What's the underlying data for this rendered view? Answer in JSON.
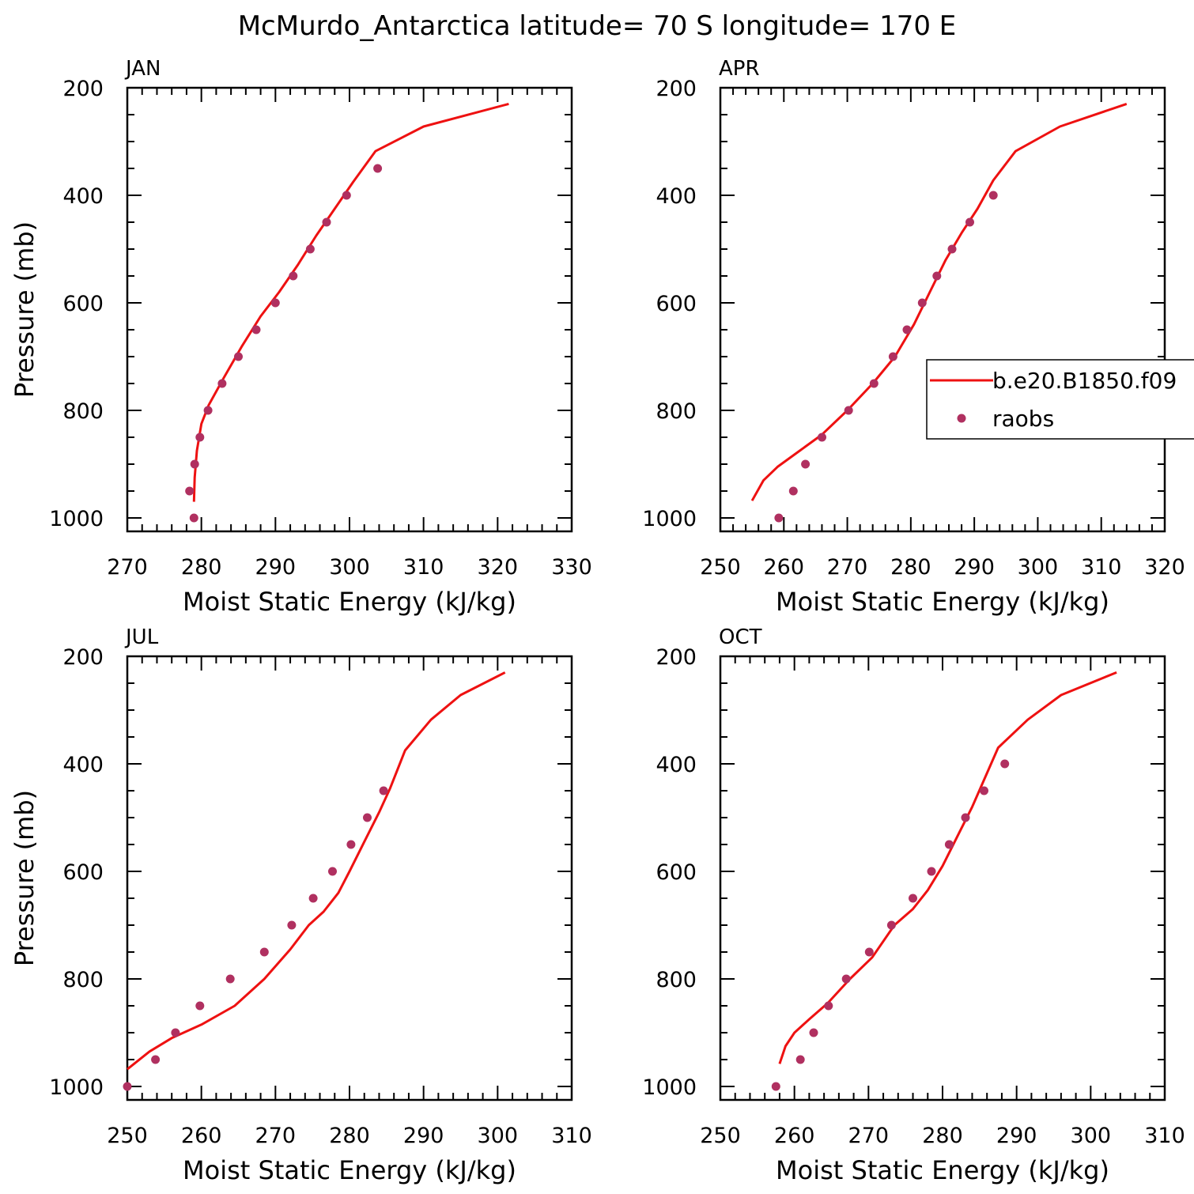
{
  "title": "McMurdo_Antarctica  latitude= 70 S longitude= 170 E",
  "colors": {
    "model": "#ee1111",
    "obs": "#b03060",
    "axis": "#000000"
  },
  "legend": {
    "model_label": "b.e20.B1850.f09",
    "obs_label": "raobs",
    "placement": "right-middle (APR panel)"
  },
  "chart_data": [
    {
      "type": "line",
      "panel_label": "JAN",
      "xlabel": "Moist Static Energy (kJ/kg)",
      "ylabel": "Pressure (mb)",
      "xlim": [
        270,
        330
      ],
      "ylim": [
        1025,
        200
      ],
      "xticks": [
        270,
        280,
        290,
        300,
        310,
        320,
        330
      ],
      "yticks": [
        200,
        400,
        600,
        800,
        1000
      ],
      "series": [
        {
          "name": "b.e20.B1850.f09",
          "kind": "line",
          "x": [
            279.0,
            279.1,
            279.4,
            280.0,
            281.0,
            283.0,
            285.5,
            288.0,
            290.5,
            293.0,
            295.5,
            298.0,
            300.5,
            303.5,
            310.0,
            321.5
          ],
          "y": [
            970,
            925,
            875,
            825,
            790,
            740,
            680,
            625,
            580,
            530,
            475,
            425,
            375,
            318,
            272,
            230
          ]
        },
        {
          "name": "raobs",
          "kind": "scatter",
          "x": [
            279.0,
            278.4,
            279.1,
            279.8,
            280.9,
            282.8,
            285.0,
            287.4,
            290.0,
            292.4,
            294.7,
            296.9,
            299.6,
            303.8
          ],
          "y": [
            1000,
            950,
            900,
            850,
            800,
            750,
            700,
            650,
            600,
            550,
            500,
            450,
            400,
            350
          ]
        }
      ]
    },
    {
      "type": "line",
      "panel_label": "APR",
      "xlabel": "Moist Static Energy (kJ/kg)",
      "ylabel": "",
      "xlim": [
        250,
        320
      ],
      "ylim": [
        1025,
        200
      ],
      "xticks": [
        250,
        260,
        270,
        280,
        290,
        300,
        310,
        320
      ],
      "yticks": [
        200,
        400,
        600,
        800,
        1000
      ],
      "series": [
        {
          "name": "b.e20.B1850.f09",
          "kind": "line",
          "x": [
            255.0,
            256.8,
            259.0,
            262.5,
            266.0,
            270.0,
            274.0,
            277.5,
            280.5,
            283.0,
            285.5,
            288.0,
            290.5,
            293.0,
            296.5,
            303.5,
            314.0
          ],
          "y": [
            968,
            930,
            905,
            875,
            845,
            800,
            750,
            700,
            640,
            580,
            520,
            470,
            425,
            372,
            318,
            272,
            230
          ]
        },
        {
          "name": "raobs",
          "kind": "scatter",
          "x": [
            259.2,
            261.5,
            263.4,
            266.0,
            270.2,
            274.2,
            277.2,
            279.4,
            281.8,
            284.1,
            286.5,
            289.3,
            293.0
          ],
          "y": [
            1000,
            950,
            900,
            850,
            800,
            750,
            700,
            650,
            600,
            550,
            500,
            450,
            400
          ]
        }
      ]
    },
    {
      "type": "line",
      "panel_label": "JUL",
      "xlabel": "Moist Static Energy (kJ/kg)",
      "ylabel": "Pressure (mb)",
      "xlim": [
        250,
        310
      ],
      "ylim": [
        1025,
        200
      ],
      "xticks": [
        250,
        260,
        270,
        280,
        290,
        300,
        310
      ],
      "yticks": [
        200,
        400,
        600,
        800,
        1000
      ],
      "series": [
        {
          "name": "b.e20.B1850.f09",
          "kind": "line",
          "x": [
            250.0,
            253.0,
            256.0,
            260.0,
            264.5,
            268.5,
            272.0,
            274.5,
            276.5,
            278.5,
            280.0,
            282.0,
            284.0,
            285.5,
            287.5,
            291.0,
            295.0,
            301.0
          ],
          "y": [
            968,
            935,
            910,
            885,
            850,
            800,
            745,
            700,
            675,
            640,
            600,
            545,
            490,
            445,
            375,
            318,
            272,
            230
          ]
        },
        {
          "name": "raobs",
          "kind": "scatter",
          "x": [
            250.0,
            253.8,
            256.5,
            259.8,
            263.9,
            268.5,
            272.2,
            275.1,
            277.7,
            280.2,
            282.4,
            284.6
          ],
          "y": [
            1000,
            950,
            900,
            850,
            800,
            750,
            700,
            650,
            600,
            550,
            500,
            450
          ]
        }
      ]
    },
    {
      "type": "line",
      "panel_label": "OCT",
      "xlabel": "Moist Static Energy (kJ/kg)",
      "ylabel": "",
      "xlim": [
        250,
        310
      ],
      "ylim": [
        1025,
        200
      ],
      "xticks": [
        250,
        260,
        270,
        280,
        290,
        300,
        310
      ],
      "yticks": [
        200,
        400,
        600,
        800,
        1000
      ],
      "series": [
        {
          "name": "b.e20.B1850.f09",
          "kind": "line",
          "x": [
            258.0,
            258.8,
            260.0,
            262.0,
            264.5,
            267.5,
            270.5,
            273.5,
            276.0,
            278.0,
            280.0,
            282.0,
            284.0,
            287.5,
            291.5,
            296.0,
            303.5
          ],
          "y": [
            958,
            925,
            900,
            875,
            845,
            800,
            760,
            700,
            670,
            635,
            590,
            535,
            480,
            370,
            318,
            272,
            230
          ]
        },
        {
          "name": "raobs",
          "kind": "scatter",
          "x": [
            257.5,
            260.8,
            262.6,
            264.6,
            267.0,
            270.1,
            273.1,
            276.0,
            278.5,
            280.9,
            283.1,
            285.6,
            288.4
          ],
          "y": [
            1000,
            950,
            900,
            850,
            800,
            750,
            700,
            650,
            600,
            550,
            500,
            450,
            400
          ]
        }
      ]
    }
  ]
}
